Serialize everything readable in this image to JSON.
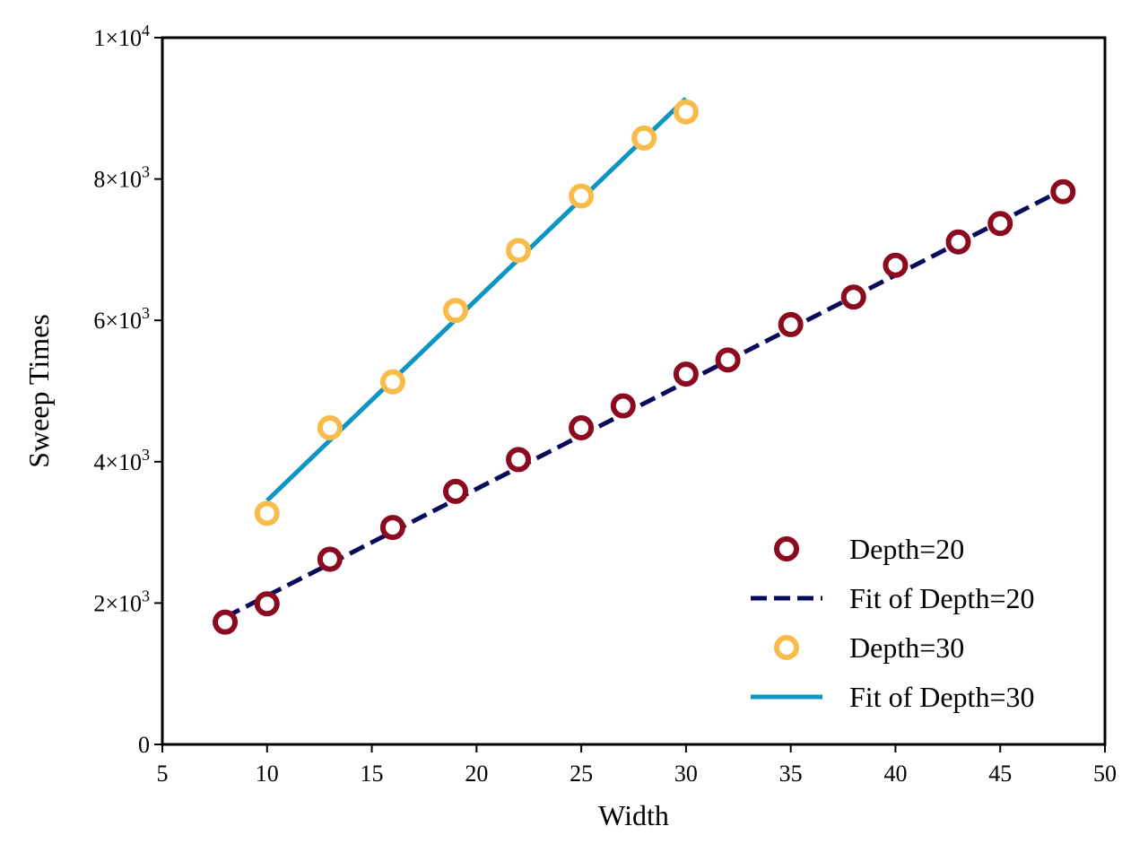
{
  "chart_data": {
    "type": "scatter",
    "title": "",
    "xlabel": "Width",
    "ylabel": "Sweep Times",
    "xlim": [
      5,
      50
    ],
    "ylim": [
      0,
      10000
    ],
    "x_ticks": [
      5,
      10,
      15,
      20,
      25,
      30,
      35,
      40,
      45,
      50
    ],
    "y_ticks": [
      {
        "value": 0,
        "mantissa": "0",
        "exponent": ""
      },
      {
        "value": 2000,
        "mantissa": "2×10",
        "exponent": "3"
      },
      {
        "value": 4000,
        "mantissa": "4×10",
        "exponent": "3"
      },
      {
        "value": 6000,
        "mantissa": "6×10",
        "exponent": "3"
      },
      {
        "value": 8000,
        "mantissa": "8×10",
        "exponent": "3"
      },
      {
        "value": 10000,
        "mantissa": "1×10",
        "exponent": "4"
      }
    ],
    "grid": false,
    "legend_position": "bottom-right",
    "series": [
      {
        "name": "Depth=20",
        "kind": "scatter",
        "marker": "hollow-circle",
        "color": "#8b0a1f",
        "x": [
          8,
          10,
          13,
          16,
          19,
          22,
          25,
          27,
          30,
          32,
          35,
          38,
          40,
          43,
          45,
          48
        ],
        "y": [
          1730,
          1990,
          2620,
          3070,
          3580,
          4030,
          4480,
          4790,
          5240,
          5440,
          5940,
          6330,
          6780,
          7110,
          7370,
          7820
        ]
      },
      {
        "name": "Fit of Depth=20",
        "kind": "line",
        "style": "dashed",
        "color": "#0a0a5a",
        "x": [
          8,
          48
        ],
        "y": [
          1800,
          7850
        ]
      },
      {
        "name": "Depth=30",
        "kind": "scatter",
        "marker": "hollow-circle",
        "color": "#f9bc4b",
        "x": [
          10,
          13,
          16,
          19,
          22,
          25,
          28,
          30
        ],
        "y": [
          3270,
          4480,
          5130,
          6140,
          6990,
          7760,
          8580,
          8950
        ]
      },
      {
        "name": "Fit of Depth=30",
        "kind": "line",
        "style": "solid",
        "color": "#0e95c4",
        "x": [
          10,
          30
        ],
        "y": [
          3450,
          9140
        ]
      }
    ]
  }
}
